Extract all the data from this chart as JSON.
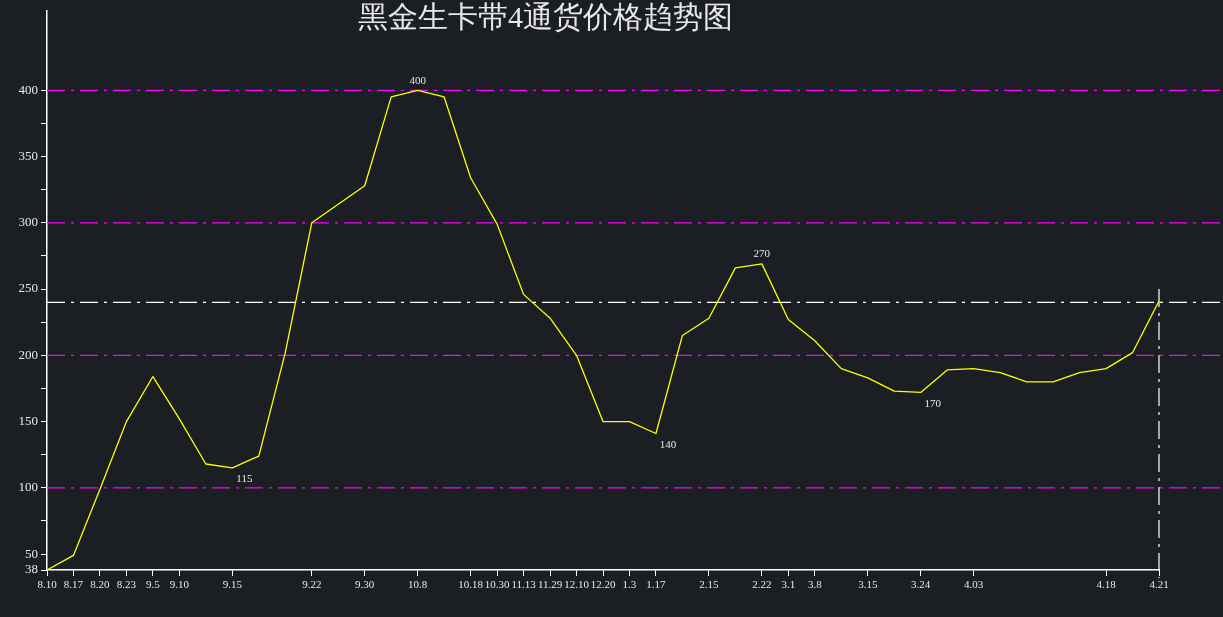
{
  "chart_data": {
    "type": "line",
    "title": "黑金生卡带4通货价格趋势图",
    "categories": [
      "8.10",
      "8.17",
      "8.20",
      "8.23",
      "9.5",
      "9.10",
      null,
      "9.15",
      null,
      null,
      "9.22",
      null,
      "9.30",
      null,
      "10.8",
      null,
      "10.18",
      "10.30",
      "11.13",
      "11.29",
      "12.10",
      "12.20",
      "1.3",
      "1.17",
      null,
      "2.15",
      null,
      "2.22",
      "3.1",
      "3.8",
      null,
      "3.15",
      null,
      "3.24",
      null,
      "4.03",
      null,
      null,
      null,
      null,
      "4.18",
      null,
      "4.21"
    ],
    "series": [
      {
        "color": "#ffff00",
        "values": [
          38,
          49,
          99,
          150,
          184,
          152,
          118,
          115,
          124,
          202,
          300,
          314,
          328,
          395,
          400,
          395,
          334,
          299,
          246,
          228,
          200,
          150,
          150,
          141,
          215,
          228,
          266,
          269,
          227,
          211,
          190,
          183,
          173,
          172,
          189,
          190,
          187,
          180,
          180,
          187,
          190,
          202,
          241
        ]
      }
    ],
    "ylim": [
      38,
      460
    ],
    "yticks": [
      38,
      50,
      {
        "value": 75,
        "label": null
      },
      100,
      {
        "value": 125,
        "label": null
      },
      150,
      {
        "value": 175,
        "label": null
      },
      200,
      {
        "value": 225,
        "label": null
      },
      250,
      {
        "value": 275,
        "label": null
      },
      300,
      {
        "value": 325,
        "label": null
      },
      350,
      {
        "value": 375,
        "label": null
      },
      400
    ],
    "ref_lines": [
      {
        "axis": "y",
        "value": 400,
        "color": "#ff00ff",
        "line_style": "dashed"
      },
      {
        "axis": "y",
        "value": 300,
        "color": "#ff00ff",
        "line_style": "dashed"
      },
      {
        "axis": "y",
        "value": 200,
        "color": "#ff00ff",
        "line_style": "dashed"
      },
      {
        "axis": "y",
        "value": 100,
        "color": "#ff00ff",
        "line_style": "dashed"
      },
      {
        "axis": "y",
        "value": 240,
        "color": "#ffffff",
        "line_style": "dashed"
      },
      {
        "axis": "x",
        "value": "4.21",
        "color": "#ffffff",
        "line_style": "dashed"
      }
    ],
    "annotations": [
      {
        "text": "400",
        "x": "10.8",
        "y": 400
      },
      {
        "text": "115",
        "x": "9.15",
        "y": 115
      },
      {
        "text": "270",
        "x": "2.22",
        "y": 269
      },
      {
        "text": "140",
        "x": "1.17",
        "y": 141
      },
      {
        "text": "170",
        "x": "3.24",
        "y": 172
      }
    ],
    "grid": false,
    "legend": false,
    "marker": "none",
    "line_style": "solid"
  }
}
